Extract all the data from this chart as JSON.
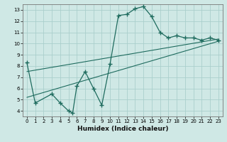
{
  "xlabel": "Humidex (Indice chaleur)",
  "ylabel": "",
  "bg_color": "#cfe8e5",
  "grid_color": "#aacfcc",
  "line_color": "#1e6b5e",
  "xlim": [
    -0.5,
    23.5
  ],
  "ylim": [
    3.5,
    13.5
  ],
  "xticks": [
    0,
    1,
    2,
    3,
    4,
    5,
    6,
    7,
    8,
    9,
    10,
    11,
    12,
    13,
    14,
    15,
    16,
    17,
    18,
    19,
    20,
    21,
    22,
    23
  ],
  "yticks": [
    4,
    5,
    6,
    7,
    8,
    9,
    10,
    11,
    12,
    13
  ],
  "curve_x": [
    0,
    1,
    3,
    4,
    5,
    5.5,
    6,
    7,
    8,
    9,
    10,
    11,
    12,
    13,
    14,
    15,
    16,
    17,
    18,
    19,
    20,
    21,
    22,
    23
  ],
  "curve_y": [
    8.3,
    4.7,
    5.5,
    4.7,
    4.0,
    3.8,
    6.2,
    7.5,
    6.0,
    4.5,
    8.2,
    12.5,
    12.6,
    13.1,
    13.3,
    12.4,
    11.0,
    10.5,
    10.7,
    10.5,
    10.5,
    10.3,
    10.5,
    10.3
  ],
  "line1_x": [
    0,
    23
  ],
  "line1_y": [
    5.2,
    10.2
  ],
  "line2_x": [
    0,
    23
  ],
  "line2_y": [
    7.5,
    10.4
  ]
}
